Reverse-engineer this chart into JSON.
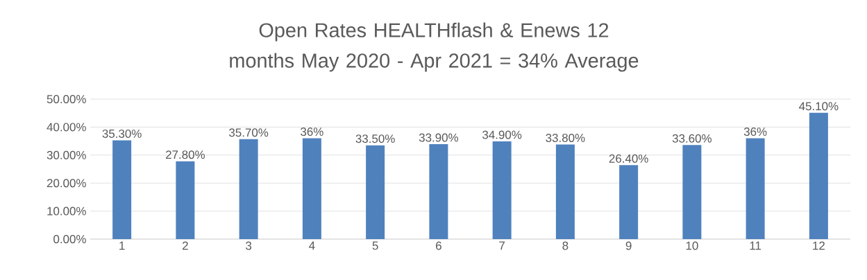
{
  "chart_data": {
    "type": "bar",
    "title": "Open Rates HEALTHflash & Enews 12 months May 2020 - Apr 2021 = 34% Average",
    "categories": [
      "1",
      "2",
      "3",
      "4",
      "5",
      "6",
      "7",
      "8",
      "9",
      "10",
      "11",
      "12"
    ],
    "values": [
      35.3,
      27.8,
      35.7,
      36,
      33.5,
      33.9,
      34.9,
      33.8,
      26.4,
      33.6,
      36,
      45.1
    ],
    "value_labels": [
      "35.30%",
      "27.80%",
      "35.70%",
      "36%",
      "33.50%",
      "33.90%",
      "34.90%",
      "33.80%",
      "26.40%",
      "33.60%",
      "36%",
      "45.10%"
    ],
    "color": "#4f81bd",
    "ylim": [
      0,
      50
    ],
    "yticks": [
      {
        "value": 0,
        "label": "0.00%"
      },
      {
        "value": 10,
        "label": "10.00%"
      },
      {
        "value": 20,
        "label": "20.00%"
      },
      {
        "value": 30,
        "label": "30.00%"
      },
      {
        "value": 40,
        "label": "40.00%"
      },
      {
        "value": 50,
        "label": "50.00%"
      }
    ],
    "grid": "y"
  }
}
